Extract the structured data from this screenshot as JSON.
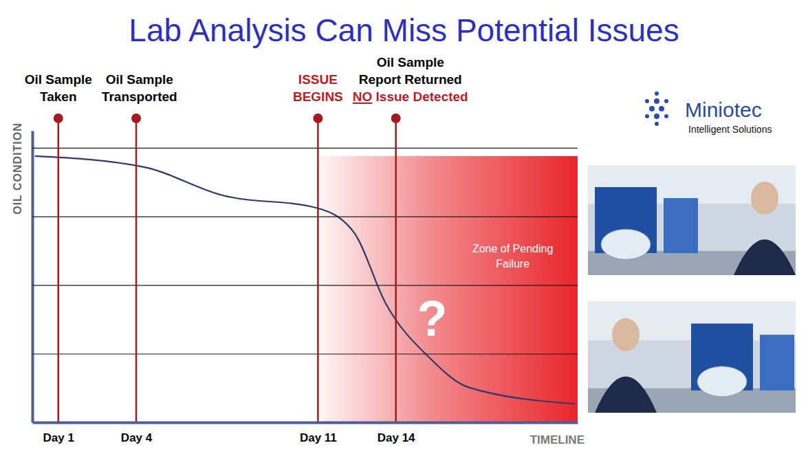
{
  "chart_data": {
    "type": "line",
    "title": "Lab Analysis Can Miss Potential Issues",
    "xlabel": "TIMELINE",
    "ylabel": "OIL CONDITION",
    "x": [
      0.1,
      4.3,
      7.3,
      11,
      12.4,
      13.6,
      15.3,
      16.8,
      20.9
    ],
    "values": [
      77.6,
      74.4,
      66.2,
      62.4,
      55.2,
      34.8,
      18.8,
      10.2,
      5.4
    ],
    "color": "#2b3a67",
    "xlim": [
      0,
      21
    ],
    "xticks": [
      {
        "value": 1,
        "label": "Day 1"
      },
      {
        "value": 4,
        "label": "Day 4"
      },
      {
        "value": 11,
        "label": "Day 11"
      },
      {
        "value": 14,
        "label": "Day 14"
      }
    ],
    "ylim": [
      0,
      85
    ],
    "yticks": [
      20,
      40,
      60,
      80
    ],
    "grid": true,
    "tick_labels": "x",
    "annotations": [
      {
        "x": 1,
        "color": "#a31b1f",
        "lines": [
          {
            "text": "Oil Sample",
            "color": "#000000"
          },
          {
            "text": "Taken",
            "color": "#000000"
          }
        ]
      },
      {
        "x": 4,
        "color": "#a31b1f",
        "lines": [
          {
            "text": "Oil Sample",
            "color": "#000000"
          },
          {
            "text": "Transported",
            "color": "#000000"
          }
        ]
      },
      {
        "x": 11,
        "color": "#a31b1f",
        "lines": [
          {
            "text": "ISSUE",
            "color": "#c41a1f"
          },
          {
            "text": "BEGINS",
            "color": "#c41a1f"
          }
        ]
      },
      {
        "x": 14,
        "color": "#a31b1f",
        "lines": [
          {
            "text": "Oil Sample",
            "color": "#000000"
          },
          {
            "text": "Report Returned",
            "color": "#000000"
          },
          {
            "text": "NO Issue Detected",
            "color": "#c41a1f"
          }
        ]
      }
    ],
    "zone": {
      "start": 11,
      "end": 21,
      "top": 77.6,
      "color": "#e8262b",
      "label": {
        "x": 18.5,
        "y": 48,
        "lines": [
          "Zone of Pending",
          "Failure"
        ]
      }
    },
    "labels": [
      {
        "x": 15.4,
        "y": 29,
        "text": "?"
      }
    ]
  },
  "logo": {
    "name": "Miniotec",
    "tagline": "Intelligent Solutions"
  }
}
